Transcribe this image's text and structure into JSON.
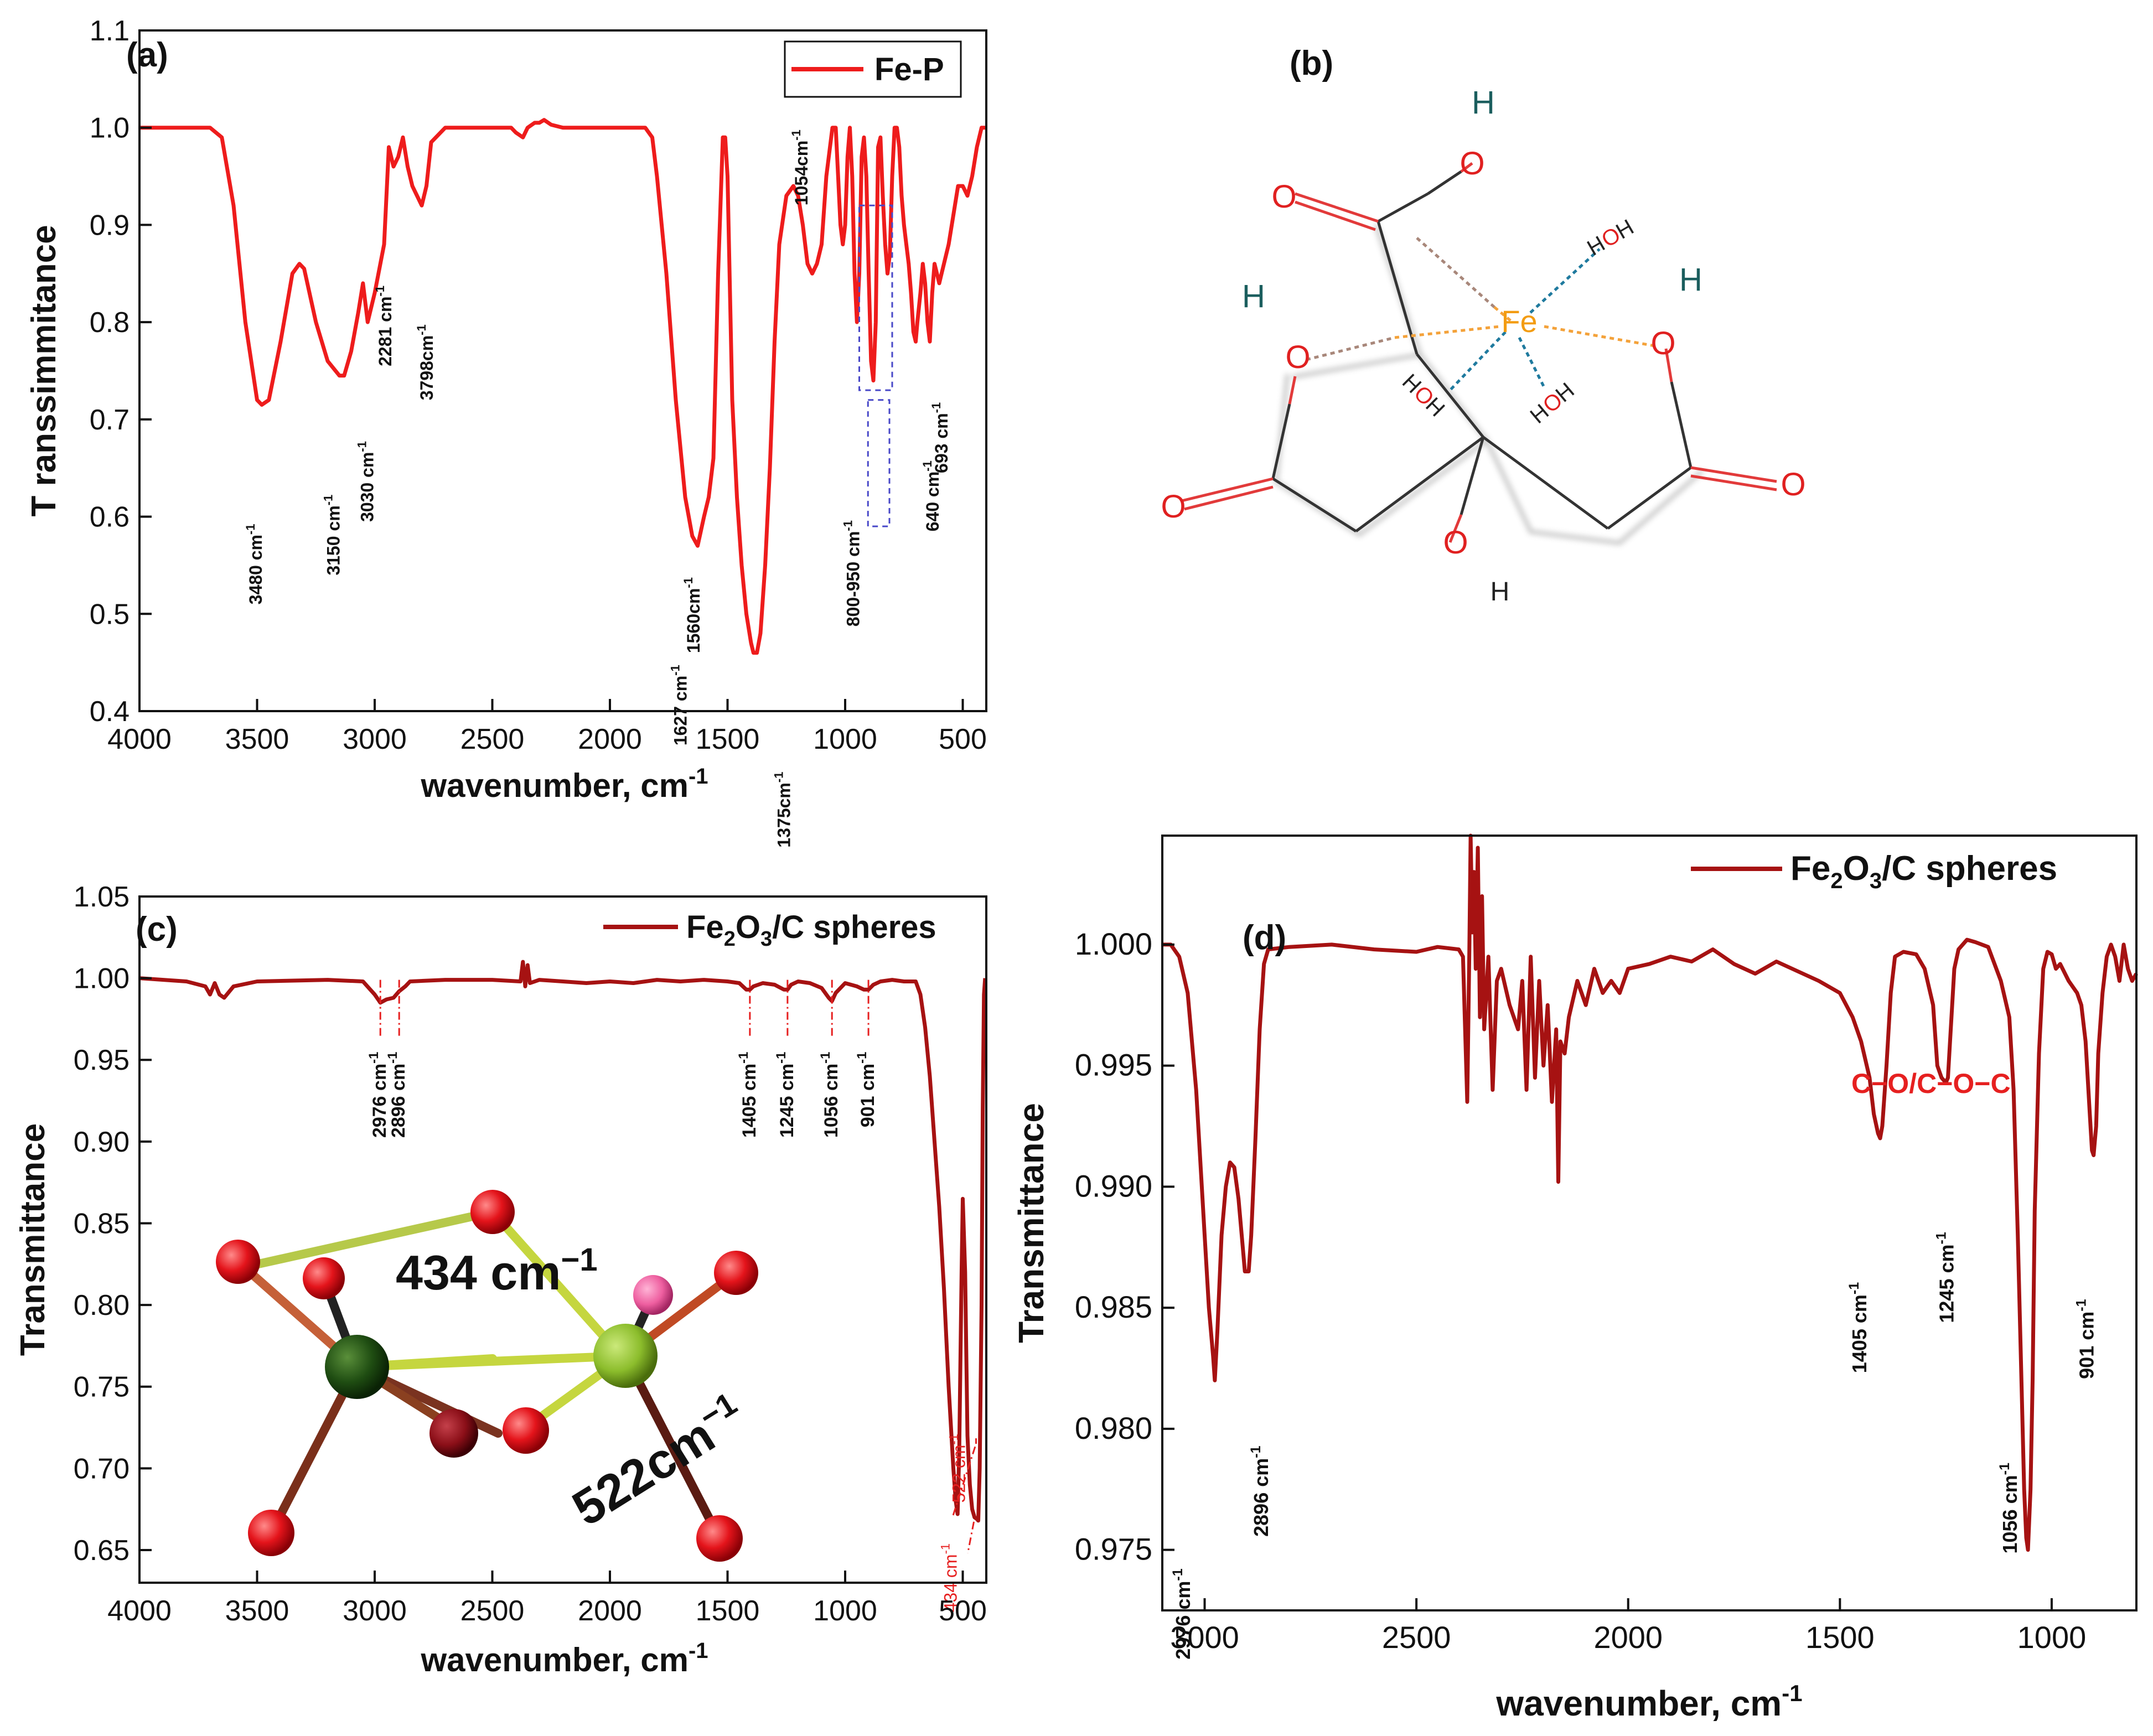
{
  "colors": {
    "fe_p": "#ee1c1c",
    "fe2o3": "#a61212",
    "annotation_red": "#e62020",
    "axis": "#111111"
  },
  "chart_data": [
    {
      "id": "a",
      "type": "line",
      "panel_label": "(a)",
      "xlabel": "wavenumber, cm",
      "xlabel_sup": "-1",
      "ylabel": "T ranssimmitance",
      "xlim": [
        4000,
        400
      ],
      "ylim": [
        0.4,
        1.1
      ],
      "xticks": [
        4000,
        3500,
        3000,
        2500,
        2000,
        1500,
        1000,
        500
      ],
      "yticks": [
        0.4,
        0.5,
        0.6,
        0.7,
        0.8,
        0.9,
        1.0,
        1.1
      ],
      "ytick_labels": [
        "0.4",
        "0.5",
        "0.6",
        "0.7",
        "0.8",
        "0.9",
        "1.0",
        "1.1"
      ],
      "series": [
        {
          "name": "Fe-P",
          "x": [
            4000,
            3700,
            3650,
            3600,
            3550,
            3500,
            3480,
            3450,
            3400,
            3350,
            3320,
            3300,
            3250,
            3200,
            3150,
            3130,
            3100,
            3070,
            3050,
            3030,
            3000,
            2960,
            2940,
            2920,
            2900,
            2880,
            2860,
            2840,
            2820,
            2800,
            2780,
            2760,
            2700,
            2600,
            2500,
            2420,
            2400,
            2370,
            2350,
            2320,
            2300,
            2280,
            2250,
            2200,
            2000,
            1850,
            1820,
            1800,
            1760,
            1720,
            1680,
            1650,
            1627,
            1600,
            1580,
            1560,
            1540,
            1520,
            1510,
            1500,
            1480,
            1460,
            1440,
            1420,
            1400,
            1390,
            1375,
            1360,
            1340,
            1320,
            1300,
            1280,
            1250,
            1220,
            1200,
            1180,
            1160,
            1140,
            1120,
            1100,
            1080,
            1054,
            1040,
            1030,
            1020,
            1010,
            1000,
            990,
            980,
            970,
            960,
            950,
            940,
            930,
            920,
            910,
            900,
            890,
            880,
            870,
            860,
            850,
            840,
            830,
            820,
            810,
            800,
            790,
            780,
            770,
            760,
            750,
            740,
            730,
            720,
            710,
            700,
            693,
            680,
            670,
            660,
            650,
            640,
            630,
            620,
            610,
            600,
            580,
            560,
            540,
            520,
            500,
            480,
            460,
            440,
            420,
            400
          ],
          "y": [
            1.0,
            1.0,
            0.99,
            0.92,
            0.8,
            0.72,
            0.715,
            0.72,
            0.78,
            0.85,
            0.86,
            0.855,
            0.8,
            0.76,
            0.745,
            0.745,
            0.77,
            0.81,
            0.84,
            0.8,
            0.83,
            0.88,
            0.98,
            0.96,
            0.97,
            0.99,
            0.96,
            0.94,
            0.93,
            0.92,
            0.94,
            0.985,
            1.0,
            1.0,
            1.0,
            1.0,
            0.995,
            0.99,
            1.0,
            1.005,
            1.005,
            1.008,
            1.003,
            1.0,
            1.0,
            1.0,
            0.99,
            0.95,
            0.85,
            0.72,
            0.62,
            0.58,
            0.57,
            0.6,
            0.62,
            0.66,
            0.85,
            0.99,
            0.99,
            0.95,
            0.72,
            0.62,
            0.55,
            0.5,
            0.47,
            0.46,
            0.46,
            0.48,
            0.55,
            0.65,
            0.78,
            0.88,
            0.93,
            0.94,
            0.93,
            0.9,
            0.86,
            0.85,
            0.86,
            0.88,
            0.95,
            1.0,
            1.0,
            0.95,
            0.9,
            0.88,
            0.9,
            0.97,
            1.0,
            0.95,
            0.85,
            0.8,
            0.85,
            0.97,
            0.99,
            0.95,
            0.85,
            0.76,
            0.74,
            0.8,
            0.98,
            0.99,
            0.93,
            0.88,
            0.85,
            0.87,
            0.95,
            1.0,
            1.0,
            0.98,
            0.93,
            0.9,
            0.88,
            0.86,
            0.83,
            0.79,
            0.78,
            0.8,
            0.83,
            0.86,
            0.84,
            0.8,
            0.78,
            0.83,
            0.86,
            0.85,
            0.84,
            0.86,
            0.88,
            0.91,
            0.94,
            0.94,
            0.93,
            0.95,
            0.98,
            1.0,
            1.0
          ]
        }
      ],
      "annotations": [
        {
          "label": "3480 cm",
          "sup": "-1",
          "x": 3480,
          "y": 0.715
        },
        {
          "label": "3150 cm",
          "sup": "-1",
          "x": 3150,
          "y": 0.745
        },
        {
          "label": "3030 cm",
          "sup": "-1",
          "x": 3030,
          "y": 0.8
        },
        {
          "label": "2281 cm",
          "sup": "-1",
          "x": 2930,
          "y": 0.96
        },
        {
          "label": "3798cm",
          "sup": "-1",
          "x": 2800,
          "y": 0.92
        },
        {
          "label": "1627 cm",
          "sup": "-1",
          "x": 1627,
          "y": 0.57
        },
        {
          "label": "1560cm",
          "sup": "-1",
          "x": 1560,
          "y": 0.66
        },
        {
          "label": "1375cm",
          "sup": "-1",
          "x": 1375,
          "y": 0.46
        },
        {
          "label": "1054cm",
          "sup": "-1",
          "x": 1054,
          "y": 0.85
        },
        {
          "label": "800-950 cm",
          "sup": "-1",
          "x": 870,
          "y": 0.73
        },
        {
          "label": "640 cm",
          "sup": "-1",
          "x": 650,
          "y": 0.78
        },
        {
          "label": "693 cm",
          "sup": "-1",
          "x": 600,
          "y": 0.84
        }
      ]
    },
    {
      "id": "c",
      "type": "line",
      "panel_label": "(c)",
      "xlabel": "wavenumber, cm",
      "xlabel_sup": "-1",
      "ylabel": "Transmittance",
      "xlim": [
        4000,
        400
      ],
      "ylim": [
        0.63,
        1.05
      ],
      "xticks": [
        4000,
        3500,
        3000,
        2500,
        2000,
        1500,
        1000,
        500
      ],
      "yticks": [
        0.65,
        0.7,
        0.75,
        0.8,
        0.85,
        0.9,
        0.95,
        1.0,
        1.05
      ],
      "ytick_labels": [
        "0.65",
        "0.70",
        "0.75",
        "0.80",
        "0.85",
        "0.90",
        "0.95",
        "1.00",
        "1.05"
      ],
      "series": [
        {
          "name": "Fe2O3/C spheres",
          "x": [
            4000,
            3800,
            3720,
            3700,
            3680,
            3660,
            3640,
            3600,
            3500,
            3200,
            3050,
            3000,
            2976,
            2950,
            2920,
            2896,
            2870,
            2850,
            2700,
            2500,
            2380,
            2370,
            2360,
            2350,
            2340,
            2300,
            2200,
            2100,
            2000,
            1900,
            1800,
            1700,
            1600,
            1500,
            1450,
            1420,
            1405,
            1390,
            1350,
            1300,
            1260,
            1245,
            1230,
            1200,
            1150,
            1100,
            1070,
            1056,
            1040,
            1000,
            950,
            920,
            901,
            880,
            850,
            800,
            750,
            700,
            680,
            660,
            640,
            620,
            600,
            580,
            560,
            540,
            530,
            522,
            515,
            505,
            500,
            490,
            480,
            470,
            460,
            450,
            440,
            434,
            428,
            420,
            415,
            410,
            405
          ],
          "y": [
            1.0,
            0.998,
            0.995,
            0.99,
            0.997,
            0.99,
            0.988,
            0.995,
            0.998,
            0.999,
            0.998,
            0.99,
            0.985,
            0.987,
            0.988,
            0.992,
            0.995,
            0.998,
            0.999,
            0.999,
            0.998,
            1.01,
            0.995,
            1.008,
            0.997,
            0.999,
            0.998,
            0.997,
            0.998,
            0.997,
            0.999,
            0.998,
            0.999,
            0.998,
            0.997,
            0.993,
            0.993,
            0.995,
            0.997,
            0.996,
            0.993,
            0.993,
            0.996,
            0.998,
            0.997,
            0.994,
            0.988,
            0.986,
            0.991,
            0.997,
            0.995,
            0.993,
            0.993,
            0.996,
            0.998,
            0.999,
            0.998,
            0.998,
            0.99,
            0.97,
            0.94,
            0.9,
            0.86,
            0.81,
            0.75,
            0.7,
            0.68,
            0.672,
            0.71,
            0.82,
            0.865,
            0.82,
            0.72,
            0.69,
            0.675,
            0.67,
            0.669,
            0.668,
            0.7,
            0.8,
            0.92,
            0.99,
            1.0
          ]
        }
      ],
      "annotations": [
        {
          "label": "2976 cm",
          "sup": "-1",
          "x": 2976
        },
        {
          "label": "2896 cm",
          "sup": "-1",
          "x": 2896
        },
        {
          "label": "1405 cm",
          "sup": "-1",
          "x": 1405
        },
        {
          "label": "1245 cm",
          "sup": "-1",
          "x": 1245
        },
        {
          "label": "1056 cm",
          "sup": "-1",
          "x": 1056
        },
        {
          "label": "901 cm",
          "sup": "-1",
          "x": 901
        },
        {
          "label": "522 cm",
          "sup": "-1",
          "x": 522,
          "y": 0.672
        },
        {
          "label": "434 cm",
          "sup": "-1",
          "x": 434,
          "y": 0.668
        }
      ],
      "inset_labels": [
        "434 cm",
        "522cm"
      ],
      "inset_sup": "−1"
    },
    {
      "id": "d",
      "type": "line",
      "panel_label": "(d)",
      "xlabel": "wavenumber, cm",
      "xlabel_sup": "-1",
      "ylabel": "Transmittance",
      "xlim": [
        3100,
        800
      ],
      "ylim": [
        0.9725,
        1.0045
      ],
      "xticks": [
        3000,
        2500,
        2000,
        1500,
        1000
      ],
      "yticks": [
        0.975,
        0.98,
        0.985,
        0.99,
        0.995,
        1.0
      ],
      "ytick_labels": [
        "0.975",
        "0.980",
        "0.985",
        "0.990",
        "0.995",
        "1.000"
      ],
      "series": [
        {
          "name": "Fe2O3/C spheres",
          "x": [
            3100,
            3080,
            3060,
            3040,
            3020,
            3000,
            2990,
            2980,
            2976,
            2970,
            2960,
            2950,
            2940,
            2930,
            2920,
            2910,
            2905,
            2896,
            2890,
            2880,
            2870,
            2860,
            2850,
            2800,
            2700,
            2600,
            2500,
            2450,
            2400,
            2390,
            2380,
            2375,
            2372,
            2368,
            2364,
            2360,
            2355,
            2350,
            2345,
            2340,
            2330,
            2320,
            2310,
            2300,
            2280,
            2260,
            2250,
            2240,
            2230,
            2220,
            2210,
            2200,
            2190,
            2180,
            2170,
            2165,
            2160,
            2150,
            2140,
            2120,
            2100,
            2080,
            2060,
            2040,
            2020,
            2000,
            1950,
            1900,
            1850,
            1800,
            1750,
            1700,
            1650,
            1600,
            1550,
            1500,
            1470,
            1450,
            1430,
            1420,
            1410,
            1405,
            1400,
            1390,
            1380,
            1370,
            1350,
            1320,
            1300,
            1280,
            1270,
            1260,
            1250,
            1245,
            1240,
            1230,
            1220,
            1200,
            1180,
            1150,
            1120,
            1100,
            1090,
            1080,
            1070,
            1065,
            1060,
            1056,
            1050,
            1045,
            1040,
            1030,
            1020,
            1010,
            1000,
            990,
            980,
            960,
            940,
            930,
            920,
            910,
            905,
            901,
            895,
            890,
            880,
            870,
            860,
            850,
            840,
            830,
            820,
            810,
            800
          ],
          "y": [
            1.0,
            1.0,
            0.9995,
            0.998,
            0.994,
            0.988,
            0.985,
            0.983,
            0.982,
            0.984,
            0.988,
            0.99,
            0.991,
            0.9908,
            0.9895,
            0.9875,
            0.9865,
            0.9865,
            0.988,
            0.992,
            0.9965,
            0.9992,
            0.9998,
            0.9999,
            1.0,
            0.9998,
            0.9997,
            0.9999,
            0.9998,
            0.9995,
            0.9935,
            0.9998,
            1.0045,
            1.0005,
            1.003,
            0.999,
            1.004,
            0.997,
            1.002,
            0.9965,
            0.9995,
            0.994,
            0.9985,
            0.999,
            0.9975,
            0.9965,
            0.9985,
            0.994,
            0.9995,
            0.9945,
            0.9985,
            0.995,
            0.9975,
            0.9935,
            0.9965,
            0.9902,
            0.996,
            0.9955,
            0.997,
            0.9985,
            0.9975,
            0.999,
            0.998,
            0.9985,
            0.998,
            0.999,
            0.9992,
            0.9995,
            0.9993,
            0.9998,
            0.9992,
            0.9988,
            0.9993,
            0.9989,
            0.9985,
            0.998,
            0.997,
            0.996,
            0.9945,
            0.993,
            0.9922,
            0.992,
            0.9925,
            0.995,
            0.998,
            0.9995,
            0.9997,
            0.9996,
            0.999,
            0.9975,
            0.995,
            0.9945,
            0.9943,
            0.9945,
            0.996,
            0.999,
            0.9998,
            1.0002,
            1.0001,
            0.9999,
            0.9985,
            0.997,
            0.994,
            0.988,
            0.981,
            0.9775,
            0.9755,
            0.975,
            0.9775,
            0.982,
            0.989,
            0.9955,
            0.999,
            0.9997,
            0.9996,
            0.999,
            0.9992,
            0.9985,
            0.998,
            0.9975,
            0.996,
            0.993,
            0.9915,
            0.9913,
            0.9925,
            0.9955,
            0.998,
            0.9995,
            1.0,
            0.9995,
            0.9985,
            1.0,
            0.999,
            0.9985,
            0.9988
          ]
        }
      ],
      "annotations": [
        {
          "label": "2976 cm",
          "sup": "-1",
          "x": 2976,
          "y": 0.982
        },
        {
          "label": "2896 cm",
          "sup": "-1",
          "x": 2896,
          "y": 0.9865
        },
        {
          "label": "1405 cm",
          "sup": "-1",
          "x": 1405,
          "y": 0.992
        },
        {
          "label": "1245 cm",
          "sup": "-1",
          "x": 1245,
          "y": 0.9943
        },
        {
          "label": "1056 cm",
          "sup": "-1",
          "x": 1056,
          "y": 0.985
        },
        {
          "label": "901 cm",
          "sup": "-1",
          "x": 901,
          "y": 0.9913
        }
      ],
      "red_annotation": "C−O/C−O−C"
    }
  ],
  "legends": {
    "a": "Fe-P",
    "c": "spheres",
    "d": "spheres"
  },
  "molecule": {
    "panel_label": "(b)",
    "atoms": {
      "fe": "Fe",
      "o": "O",
      "h": "H"
    }
  }
}
